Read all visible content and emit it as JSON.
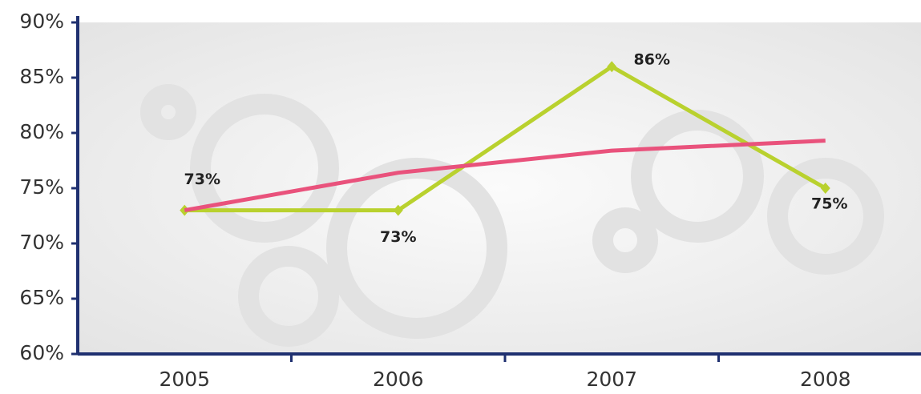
{
  "chart_data": {
    "type": "line",
    "categories": [
      "2005",
      "2006",
      "2007",
      "2008"
    ],
    "series": [
      {
        "color": "#b9d12e",
        "values": [
          73,
          73,
          86,
          75
        ],
        "value_labels": [
          "73%",
          "73%",
          "86%",
          "75%"
        ]
      },
      {
        "color": "#e9527c",
        "values": [
          73,
          76.4,
          78.4,
          79.3
        ]
      }
    ],
    "ylim": [
      60,
      90
    ],
    "yticks": [
      {
        "value": 60,
        "label": "60%"
      },
      {
        "value": 65,
        "label": "65%"
      },
      {
        "value": 70,
        "label": "70%"
      },
      {
        "value": 75,
        "label": "75%"
      },
      {
        "value": 80,
        "label": "80%"
      },
      {
        "value": 85,
        "label": "85%"
      },
      {
        "value": 90,
        "label": "90%"
      }
    ]
  }
}
